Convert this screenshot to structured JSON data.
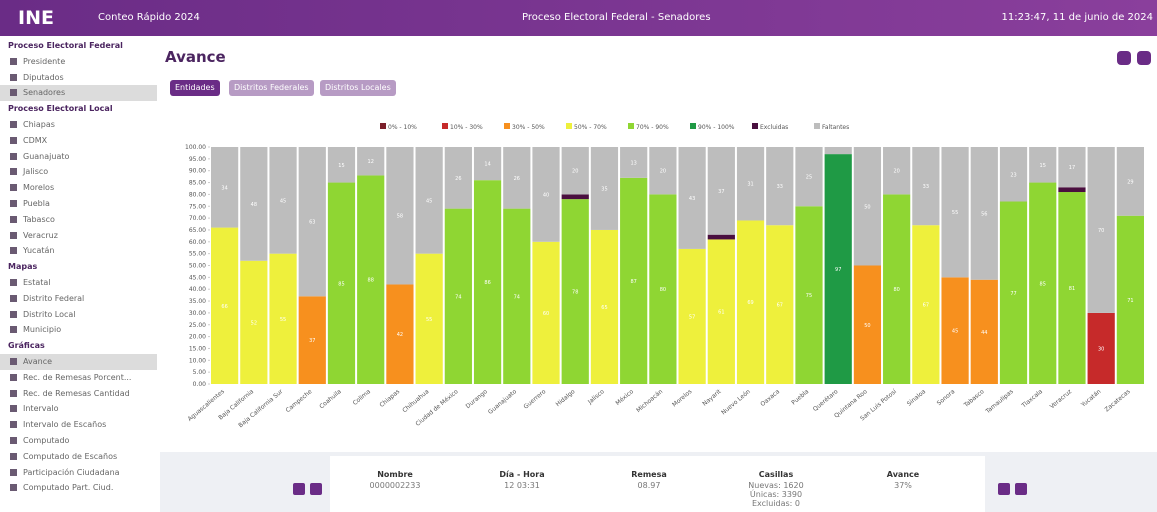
{
  "header": {
    "logo": "INE",
    "app": "Conteo Rápido 2024",
    "process": "Proceso Electoral Federal - Senadores",
    "datetime": "11:23:47, 11 de junio de 2024"
  },
  "sidebar": {
    "sections": [
      {
        "title": "Proceso Electoral Federal",
        "items": [
          "Presidente",
          "Diputados",
          "Senadores"
        ]
      },
      {
        "title": "Proceso Electoral Local",
        "items": [
          "Chiapas",
          "CDMX",
          "Guanajuato",
          "Jalisco",
          "Morelos",
          "Puebla",
          "Tabasco",
          "Veracruz",
          "Yucatán"
        ]
      },
      {
        "title": "Mapas",
        "items": [
          "Estatal",
          "Distrito Federal",
          "Distrito Local",
          "Municipio"
        ]
      },
      {
        "title": "Gráficas",
        "items": [
          "Avance",
          "Rec. de Remesas Porcent...",
          "Rec. de Remesas Cantidad",
          "Intervalo",
          "Intervalo de Escaños",
          "Computado",
          "Computado de Escaños",
          "Participación Ciudadana",
          "Computado Part. Ciud."
        ]
      }
    ]
  },
  "page": {
    "title": "Avance",
    "tabs": [
      "Entidades",
      "Distritos Federales",
      "Distritos Locales"
    ]
  },
  "chart_data": {
    "type": "stacked-bar",
    "categories": [
      "Aguascalientes",
      "Baja California",
      "Baja California Sur",
      "Campeche",
      "Coahuila",
      "Colima",
      "Chiapas",
      "Chihuahua",
      "Ciudad de México",
      "Durango",
      "Guanajuato",
      "Guerrero",
      "Hidalgo",
      "Jalisco",
      "México",
      "Michoacán",
      "Morelos",
      "Nayarit",
      "Nuevo León",
      "Oaxaca",
      "Puebla",
      "Querétaro",
      "Quintana Roo",
      "San Luis Potosí",
      "Sinaloa",
      "Sonora",
      "Tabasco",
      "Tamaulipas",
      "Tlaxcala",
      "Veracruz",
      "Yucatán",
      "Zacatecas"
    ],
    "series": [
      {
        "name": "0% - 10%",
        "color": "#7b1f2a",
        "values": [
          null,
          null,
          null,
          null,
          null,
          null,
          null,
          null,
          null,
          null,
          null,
          null,
          null,
          null,
          null,
          null,
          null,
          null,
          null,
          null,
          null,
          null,
          null,
          null,
          null,
          null,
          null,
          null,
          null,
          null,
          null,
          null
        ]
      },
      {
        "name": "10% - 30%",
        "color": "#c62a2a",
        "values": [
          null,
          null,
          null,
          null,
          null,
          null,
          null,
          null,
          null,
          null,
          null,
          null,
          null,
          null,
          null,
          null,
          null,
          null,
          null,
          null,
          null,
          null,
          null,
          null,
          null,
          null,
          null,
          null,
          null,
          null,
          30,
          null
        ]
      },
      {
        "name": "30% - 50%",
        "color": "#f7901e",
        "values": [
          null,
          null,
          null,
          37,
          null,
          null,
          42,
          null,
          null,
          null,
          null,
          null,
          null,
          null,
          null,
          null,
          null,
          null,
          null,
          null,
          null,
          null,
          50,
          null,
          null,
          45,
          44,
          null,
          null,
          null,
          null,
          null
        ]
      },
      {
        "name": "50% - 70%",
        "color": "#eef03c",
        "values": [
          66,
          52,
          55,
          null,
          null,
          null,
          null,
          55,
          null,
          null,
          null,
          60,
          null,
          65,
          null,
          null,
          57,
          61,
          69,
          67,
          null,
          null,
          null,
          null,
          67,
          null,
          null,
          null,
          null,
          null,
          null,
          null
        ]
      },
      {
        "name": "70% - 90%",
        "color": "#8fd633",
        "values": [
          null,
          null,
          null,
          null,
          85,
          88,
          null,
          null,
          74,
          86,
          74,
          null,
          78,
          null,
          87,
          80,
          null,
          null,
          null,
          null,
          75,
          null,
          null,
          80,
          null,
          null,
          null,
          77,
          85,
          81,
          null,
          71
        ]
      },
      {
        "name": "90% - 100%",
        "color": "#1f9a45",
        "values": [
          null,
          null,
          null,
          null,
          null,
          null,
          null,
          null,
          null,
          null,
          null,
          null,
          null,
          null,
          null,
          null,
          null,
          null,
          null,
          null,
          null,
          97,
          null,
          null,
          null,
          null,
          null,
          null,
          null,
          null,
          null,
          null
        ]
      },
      {
        "name": "Excluidas",
        "color": "#4a0f3f",
        "values": [
          null,
          null,
          null,
          null,
          null,
          null,
          null,
          null,
          null,
          null,
          null,
          null,
          2,
          null,
          null,
          null,
          null,
          2,
          null,
          null,
          null,
          null,
          null,
          null,
          null,
          null,
          null,
          null,
          null,
          2,
          null,
          null
        ]
      },
      {
        "name": "Faltantes",
        "color": "#bdbdbd",
        "values": [
          34,
          48,
          45,
          63,
          15,
          12,
          58,
          45,
          26,
          14,
          26,
          40,
          20,
          35,
          13,
          20,
          43,
          37,
          31,
          33,
          25,
          3,
          50,
          20,
          33,
          55,
          56,
          23,
          15,
          17,
          70,
          29
        ]
      }
    ],
    "ylim": [
      0,
      100
    ],
    "yticks": [
      {
        "value": 0,
        "label": "0.00"
      },
      {
        "value": 5,
        "label": "5.00"
      },
      {
        "value": 10,
        "label": "10.00"
      },
      {
        "value": 15,
        "label": "15.00"
      },
      {
        "value": 20,
        "label": "20.00"
      },
      {
        "value": 25,
        "label": "25.00"
      },
      {
        "value": 30,
        "label": "30.00"
      },
      {
        "value": 35,
        "label": "35.00"
      },
      {
        "value": 40,
        "label": "40.00"
      },
      {
        "value": 45,
        "label": "45.00"
      },
      {
        "value": 50,
        "label": "50.00"
      },
      {
        "value": 55,
        "label": "55.00"
      },
      {
        "value": 60,
        "label": "60.00"
      },
      {
        "value": 65,
        "label": "65.00"
      },
      {
        "value": 70,
        "label": "70.00"
      },
      {
        "value": 75,
        "label": "75.00"
      },
      {
        "value": 80,
        "label": "80.00"
      },
      {
        "value": 85,
        "label": "85.00"
      },
      {
        "value": 90,
        "label": "90.00"
      },
      {
        "value": 95,
        "label": "95.00"
      },
      {
        "value": 100,
        "label": "100.00"
      }
    ],
    "legend": "top"
  },
  "info": {
    "columns": [
      {
        "title": "Nombre",
        "lines": [
          "0000002233"
        ]
      },
      {
        "title": "Día - Hora",
        "lines": [
          "12 03:31"
        ]
      },
      {
        "title": "Remesa",
        "lines": [
          "08.97"
        ]
      },
      {
        "title": "Casillas",
        "lines": [
          "Nuevas: 1620",
          "Únicas: 3390",
          "Excluidas: 0"
        ]
      },
      {
        "title": "Avance",
        "lines": [
          "37%"
        ]
      }
    ]
  }
}
